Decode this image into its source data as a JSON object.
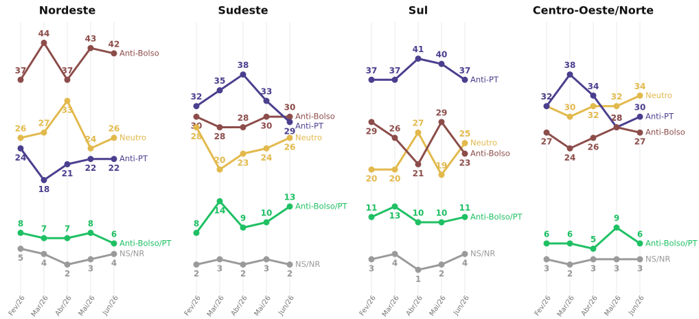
{
  "chart_data": [
    {
      "type": "line",
      "title": "Nordeste",
      "categories": [
        "Fev/26",
        "Mar/26",
        "Abr/26",
        "Mai/26",
        "Jun/26"
      ],
      "ylim": [
        0,
        46
      ],
      "series": [
        {
          "name": "Anti-Bolso",
          "color": "#8c4d4a",
          "values": [
            37,
            44,
            37,
            43,
            42
          ]
        },
        {
          "name": "Neutro",
          "color": "#e2b94c",
          "values": [
            26,
            27,
            33,
            24,
            26
          ]
        },
        {
          "name": "Anti-PT",
          "color": "#4a3f8e",
          "values": [
            24,
            18,
            21,
            22,
            22
          ]
        },
        {
          "name": "Anti-Bolso/PT",
          "color": "#1fc063",
          "values": [
            8,
            7,
            7,
            8,
            6
          ]
        },
        {
          "name": "NS/NR",
          "color": "#9a9a9a",
          "values": [
            5,
            4,
            2,
            3,
            4
          ]
        }
      ]
    },
    {
      "type": "line",
      "title": "Sudeste",
      "categories": [
        "Fev/26",
        "Mar/26",
        "Abr/26",
        "Mai/26",
        "Jun/26"
      ],
      "ylim": [
        0,
        46
      ],
      "series": [
        {
          "name": "Anti-Bolso",
          "color": "#8c4d4a",
          "values": [
            30,
            28,
            28,
            30,
            30
          ]
        },
        {
          "name": "Anti-PT",
          "color": "#4a3f8e",
          "values": [
            32,
            35,
            38,
            33,
            29
          ]
        },
        {
          "name": "Neutro",
          "color": "#e2b94c",
          "values": [
            28,
            20,
            23,
            24,
            26
          ]
        },
        {
          "name": "Anti-Bolso/PT",
          "color": "#1fc063",
          "values": [
            8,
            14,
            9,
            10,
            13
          ]
        },
        {
          "name": "NS/NR",
          "color": "#9a9a9a",
          "values": [
            2,
            3,
            2,
            3,
            2
          ]
        }
      ]
    },
    {
      "type": "line",
      "title": "Sul",
      "categories": [
        "Fev/26",
        "Mar/26",
        "Abr/26",
        "Mai/26",
        "Jun/26"
      ],
      "ylim": [
        0,
        46
      ],
      "series": [
        {
          "name": "Anti-PT",
          "color": "#4a3f8e",
          "values": [
            37,
            37,
            41,
            40,
            37
          ]
        },
        {
          "name": "Neutro",
          "color": "#e2b94c",
          "values": [
            20,
            20,
            27,
            19,
            25
          ]
        },
        {
          "name": "Anti-Bolso",
          "color": "#8c4d4a",
          "values": [
            29,
            26,
            21,
            29,
            23
          ]
        },
        {
          "name": "Anti-Bolso/PT",
          "color": "#1fc063",
          "values": [
            11,
            13,
            10,
            10,
            11
          ]
        },
        {
          "name": "NS/NR",
          "color": "#9a9a9a",
          "values": [
            3,
            4,
            1,
            2,
            4
          ]
        }
      ]
    },
    {
      "type": "line",
      "title": "Centro-Oeste/Norte",
      "categories": [
        "Fev/26",
        "Mar/26",
        "Abr/26",
        "Mai/26",
        "Jun/26"
      ],
      "ylim": [
        0,
        46
      ],
      "series": [
        {
          "name": "Neutro",
          "color": "#e2b94c",
          "values": [
            32,
            30,
            32,
            32,
            34
          ]
        },
        {
          "name": "Anti-PT",
          "color": "#4a3f8e",
          "values": [
            32,
            38,
            34,
            28,
            30
          ]
        },
        {
          "name": "Anti-Bolso",
          "color": "#8c4d4a",
          "values": [
            27,
            24,
            26,
            28,
            27
          ]
        },
        {
          "name": "Anti-Bolso/PT",
          "color": "#1fc063",
          "values": [
            6,
            6,
            5,
            9,
            6
          ]
        },
        {
          "name": "NS/NR",
          "color": "#9a9a9a",
          "values": [
            3,
            2,
            3,
            3,
            3
          ]
        }
      ]
    }
  ]
}
